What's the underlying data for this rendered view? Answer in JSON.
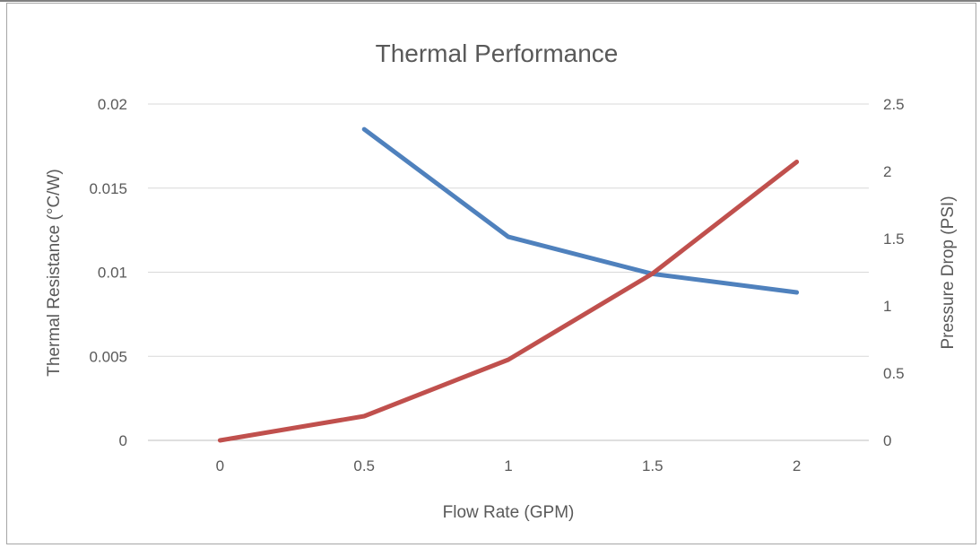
{
  "chart_data": {
    "type": "line",
    "title": "Thermal Performance",
    "xlabel": "Flow Rate (GPM)",
    "ylabel": "Thermal Resistance (°C/W)",
    "y2label": "Pressure Drop (PSI)",
    "x_ticks": [
      "0",
      "0.5",
      "1",
      "1.5",
      "2"
    ],
    "x_values": [
      0,
      0.5,
      1,
      1.5,
      2
    ],
    "xlim": [
      -0.25,
      2.25
    ],
    "y_ticks": [
      "0",
      "0.005",
      "0.01",
      "0.015",
      "0.02"
    ],
    "ylim": [
      0,
      0.02
    ],
    "y2_ticks": [
      "0",
      "0.5",
      "1",
      "1.5",
      "2",
      "2.5"
    ],
    "y2lim": [
      0,
      2.5
    ],
    "grid": true,
    "series": [
      {
        "axis": "left",
        "color": "#4f81bd",
        "x": [
          0.5,
          1,
          1.5,
          2
        ],
        "values": [
          0.0185,
          0.0121,
          0.0099,
          0.0088
        ]
      },
      {
        "axis": "right",
        "color": "#c0504d",
        "x": [
          0,
          0.5,
          1,
          1.5,
          2
        ],
        "values": [
          0,
          0.18,
          0.6,
          1.24,
          2.07
        ]
      }
    ]
  }
}
